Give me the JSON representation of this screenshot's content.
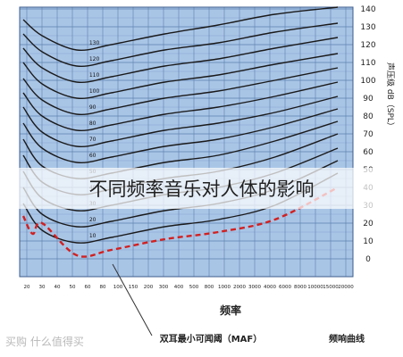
{
  "banner_title": "不同频率音乐对人体的影响",
  "watermark": "买购 什么值得买",
  "chart_data": {
    "type": "line",
    "title": "",
    "xlabel": "频率",
    "ylabel": "声压级 dB（SPL）",
    "right_caption": "频响曲线",
    "annotation": "双耳最小可闻阈（MAF）",
    "x_tick_labels": [
      "20",
      "30",
      "40",
      "50",
      "60",
      "80",
      "100",
      "150",
      "200",
      "300",
      "400",
      "500",
      "800",
      "1000",
      "2000",
      "3000",
      "4000",
      "6000",
      "8000",
      "10000",
      "15000",
      "20000"
    ],
    "y_ticks": [
      0,
      10,
      20,
      30,
      40,
      50,
      60,
      70,
      80,
      90,
      100,
      110,
      120,
      130,
      140
    ],
    "ylim": [
      -10,
      145
    ],
    "x_fraction_note": "",
    "series": [
      {
        "label": "130",
        "points": [
          [
            0.0,
            134
          ],
          [
            0.06,
            125
          ],
          [
            0.17,
            117
          ],
          [
            0.28,
            120
          ],
          [
            0.45,
            126
          ],
          [
            0.62,
            131
          ],
          [
            0.8,
            137
          ],
          [
            1.0,
            141
          ]
        ]
      },
      {
        "label": "120",
        "points": [
          [
            0.0,
            126
          ],
          [
            0.06,
            116
          ],
          [
            0.17,
            108
          ],
          [
            0.28,
            111
          ],
          [
            0.45,
            117
          ],
          [
            0.62,
            121
          ],
          [
            0.8,
            127
          ],
          [
            1.0,
            132
          ]
        ]
      },
      {
        "label": "110",
        "points": [
          [
            0.0,
            118
          ],
          [
            0.06,
            107
          ],
          [
            0.17,
            99
          ],
          [
            0.28,
            102
          ],
          [
            0.45,
            108
          ],
          [
            0.62,
            112
          ],
          [
            0.8,
            118
          ],
          [
            1.0,
            124
          ]
        ]
      },
      {
        "label": "100",
        "points": [
          [
            0.0,
            110
          ],
          [
            0.06,
            98
          ],
          [
            0.17,
            90
          ],
          [
            0.28,
            93
          ],
          [
            0.45,
            99
          ],
          [
            0.62,
            103
          ],
          [
            0.8,
            109
          ],
          [
            1.0,
            115
          ]
        ]
      },
      {
        "label": "90",
        "points": [
          [
            0.0,
            101
          ],
          [
            0.06,
            89
          ],
          [
            0.17,
            81
          ],
          [
            0.28,
            84
          ],
          [
            0.45,
            90
          ],
          [
            0.62,
            94
          ],
          [
            0.8,
            100
          ],
          [
            1.0,
            107
          ]
        ]
      },
      {
        "label": "80",
        "points": [
          [
            0.0,
            93
          ],
          [
            0.06,
            80
          ],
          [
            0.17,
            72
          ],
          [
            0.28,
            75
          ],
          [
            0.45,
            81
          ],
          [
            0.62,
            85
          ],
          [
            0.8,
            91
          ],
          [
            1.0,
            99
          ]
        ]
      },
      {
        "label": "70",
        "points": [
          [
            0.0,
            85
          ],
          [
            0.06,
            71
          ],
          [
            0.17,
            63
          ],
          [
            0.28,
            66
          ],
          [
            0.45,
            72
          ],
          [
            0.62,
            76
          ],
          [
            0.8,
            82
          ],
          [
            1.0,
            91
          ]
        ]
      },
      {
        "label": "60",
        "points": [
          [
            0.0,
            76
          ],
          [
            0.06,
            62
          ],
          [
            0.17,
            54
          ],
          [
            0.28,
            57
          ],
          [
            0.45,
            63
          ],
          [
            0.62,
            67
          ],
          [
            0.8,
            74
          ],
          [
            1.0,
            84
          ]
        ]
      },
      {
        "label": "50",
        "points": [
          [
            0.0,
            67
          ],
          [
            0.06,
            52
          ],
          [
            0.17,
            45
          ],
          [
            0.28,
            48
          ],
          [
            0.45,
            54
          ],
          [
            0.62,
            58
          ],
          [
            0.8,
            66
          ],
          [
            1.0,
            77
          ]
        ]
      },
      {
        "label": "40",
        "points": [
          [
            0.0,
            58
          ],
          [
            0.06,
            43
          ],
          [
            0.17,
            36
          ],
          [
            0.28,
            39
          ],
          [
            0.45,
            45
          ],
          [
            0.62,
            49
          ],
          [
            0.8,
            57
          ],
          [
            1.0,
            70
          ]
        ]
      },
      {
        "label": "30",
        "points": [
          [
            0.0,
            49
          ],
          [
            0.06,
            34
          ],
          [
            0.17,
            27
          ],
          [
            0.28,
            30
          ],
          [
            0.45,
            36
          ],
          [
            0.62,
            40
          ],
          [
            0.8,
            48
          ],
          [
            1.0,
            62
          ]
        ]
      },
      {
        "label": "20",
        "points": [
          [
            0.0,
            40
          ],
          [
            0.06,
            25
          ],
          [
            0.17,
            18
          ],
          [
            0.28,
            21
          ],
          [
            0.45,
            27
          ],
          [
            0.62,
            31
          ],
          [
            0.8,
            39
          ],
          [
            1.0,
            55
          ]
        ]
      },
      {
        "label": "10",
        "points": [
          [
            0.0,
            31
          ],
          [
            0.06,
            16
          ],
          [
            0.17,
            9
          ],
          [
            0.28,
            12
          ],
          [
            0.45,
            18
          ],
          [
            0.62,
            22
          ],
          [
            0.8,
            30
          ],
          [
            1.0,
            48
          ]
        ]
      }
    ],
    "threshold_curve": {
      "label": "MAF",
      "style": "dashed",
      "color": "#d22020",
      "points": [
        [
          0.0,
          24
        ],
        [
          0.03,
          14
        ],
        [
          0.06,
          20
        ],
        [
          0.17,
          2
        ],
        [
          0.28,
          5
        ],
        [
          0.45,
          11
        ],
        [
          0.62,
          15
        ],
        [
          0.8,
          22
        ],
        [
          1.0,
          40
        ]
      ]
    },
    "colors": {
      "plot_background": "#a9c5e6",
      "grid": "#5e7fae",
      "curve": "#1a1a1a"
    }
  }
}
